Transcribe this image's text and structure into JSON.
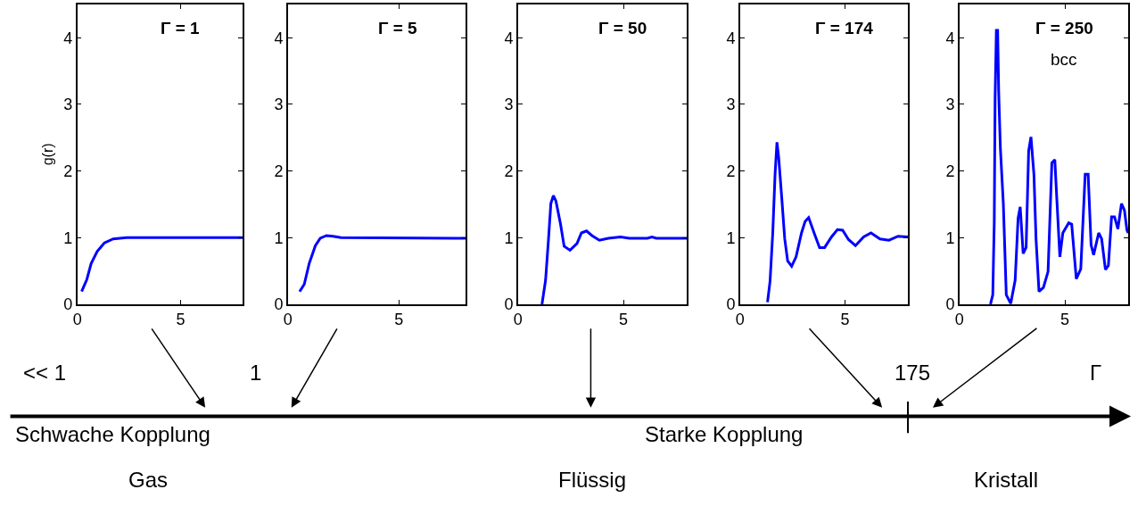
{
  "chart_data": [
    {
      "type": "line",
      "ylabel": "g(r)",
      "annotations": [
        "Γ = 1"
      ],
      "xlim": [
        0,
        8
      ],
      "ylim": [
        0,
        4.5
      ],
      "xticks": [
        0,
        5
      ],
      "yticks": [
        0,
        1,
        2,
        3,
        4
      ],
      "series": [
        {
          "color": "#0000ff",
          "x": [
            0.21,
            0.46,
            0.67,
            0.96,
            1.31,
            1.74,
            2.39,
            8
          ],
          "values": [
            0.19,
            0.37,
            0.61,
            0.79,
            0.92,
            0.98,
            1.0,
            1.0
          ]
        }
      ]
    },
    {
      "type": "line",
      "annotations": [
        "Γ = 5"
      ],
      "xlim": [
        0,
        8
      ],
      "ylim": [
        0,
        4.5
      ],
      "xticks": [
        0,
        5
      ],
      "yticks": [
        0,
        1,
        2,
        3,
        4
      ],
      "series": [
        {
          "color": "#0000ff",
          "x": [
            0.53,
            0.74,
            0.96,
            1.24,
            1.46,
            1.74,
            2.03,
            2.39,
            8
          ],
          "values": [
            0.19,
            0.3,
            0.61,
            0.88,
            0.99,
            1.03,
            1.02,
            1.0,
            0.99
          ]
        }
      ]
    },
    {
      "type": "line",
      "annotations": [
        "Γ = 50"
      ],
      "xlim": [
        0,
        8
      ],
      "ylim": [
        0,
        4.5
      ],
      "xticks": [
        0,
        5
      ],
      "yticks": [
        0,
        1,
        2,
        3,
        4
      ],
      "series": [
        {
          "color": "#0000ff",
          "x": [
            1.14,
            1.31,
            1.45,
            1.56,
            1.68,
            1.8,
            2.02,
            2.19,
            2.47,
            2.8,
            3.01,
            3.25,
            3.51,
            3.86,
            4.29,
            4.86,
            5.28,
            6.14,
            6.35,
            6.56,
            8
          ],
          "values": [
            0,
            0.36,
            0.98,
            1.51,
            1.63,
            1.55,
            1.2,
            0.87,
            0.81,
            0.91,
            1.07,
            1.1,
            1.03,
            0.96,
            0.99,
            1.01,
            0.99,
            0.99,
            1.01,
            0.99,
            0.99
          ]
        }
      ]
    },
    {
      "type": "line",
      "annotations": [
        "Γ = 174"
      ],
      "xlim": [
        0,
        8
      ],
      "ylim": [
        0,
        4.5
      ],
      "xticks": [
        0,
        5
      ],
      "yticks": [
        0,
        1,
        2,
        3,
        4
      ],
      "series": [
        {
          "color": "#0000ff",
          "x": [
            1.31,
            1.43,
            1.56,
            1.67,
            1.76,
            1.84,
            1.99,
            2.13,
            2.27,
            2.46,
            2.67,
            2.93,
            3.1,
            3.27,
            3.53,
            3.79,
            4.03,
            4.36,
            4.64,
            4.89,
            5.17,
            5.5,
            5.89,
            6.24,
            6.67,
            7.1,
            7.53,
            8
          ],
          "values": [
            0.03,
            0.34,
            1.07,
            1.95,
            2.43,
            2.21,
            1.59,
            0.98,
            0.65,
            0.57,
            0.71,
            1.07,
            1.24,
            1.3,
            1.07,
            0.85,
            0.85,
            1.01,
            1.12,
            1.11,
            0.97,
            0.88,
            1.01,
            1.07,
            0.98,
            0.96,
            1.02,
            1.01
          ]
        }
      ]
    },
    {
      "type": "line",
      "annotations": [
        "Γ = 250",
        "bcc"
      ],
      "xlim": [
        0,
        8
      ],
      "ylim": [
        0,
        4.5
      ],
      "xticks": [
        0,
        5
      ],
      "yticks": [
        0,
        1,
        2,
        3,
        4
      ],
      "series": [
        {
          "color": "#0000ff",
          "x": [
            1.47,
            1.58,
            1.65,
            1.69,
            1.75,
            1.81,
            1.86,
            1.94,
            2.08,
            2.22,
            2.43,
            2.64,
            2.78,
            2.88,
            3.02,
            3.16,
            3.28,
            3.39,
            3.53,
            3.63,
            3.77,
            3.98,
            4.2,
            4.38,
            4.52,
            4.62,
            4.76,
            4.9,
            5.18,
            5.32,
            5.54,
            5.75,
            5.96,
            6.1,
            6.24,
            6.36,
            6.6,
            6.74,
            6.92,
            7.06,
            7.21,
            7.35,
            7.51,
            7.68,
            7.82,
            7.94,
            8
          ],
          "values": [
            0,
            0.14,
            1.24,
            3.09,
            4.11,
            4.11,
            3.19,
            2.34,
            1.51,
            0.14,
            0.01,
            0.36,
            1.29,
            1.46,
            0.76,
            0.85,
            2.3,
            2.51,
            1.95,
            0.98,
            0.19,
            0.25,
            0.49,
            2.12,
            2.17,
            1.55,
            0.71,
            1.07,
            1.22,
            1.2,
            0.38,
            0.53,
            1.95,
            1.95,
            0.89,
            0.74,
            1.07,
            0.98,
            0.52,
            0.58,
            1.31,
            1.31,
            1.13,
            1.51,
            1.41,
            1.11,
            1.07
          ]
        }
      ]
    },
    {
      "type": "other",
      "annotations": [
        "<< 1",
        "1",
        "175",
        "Γ",
        "Schwache Kopplung",
        "Starke Kopplung",
        "Gas",
        "Flüssig",
        "Kristall"
      ]
    }
  ]
}
